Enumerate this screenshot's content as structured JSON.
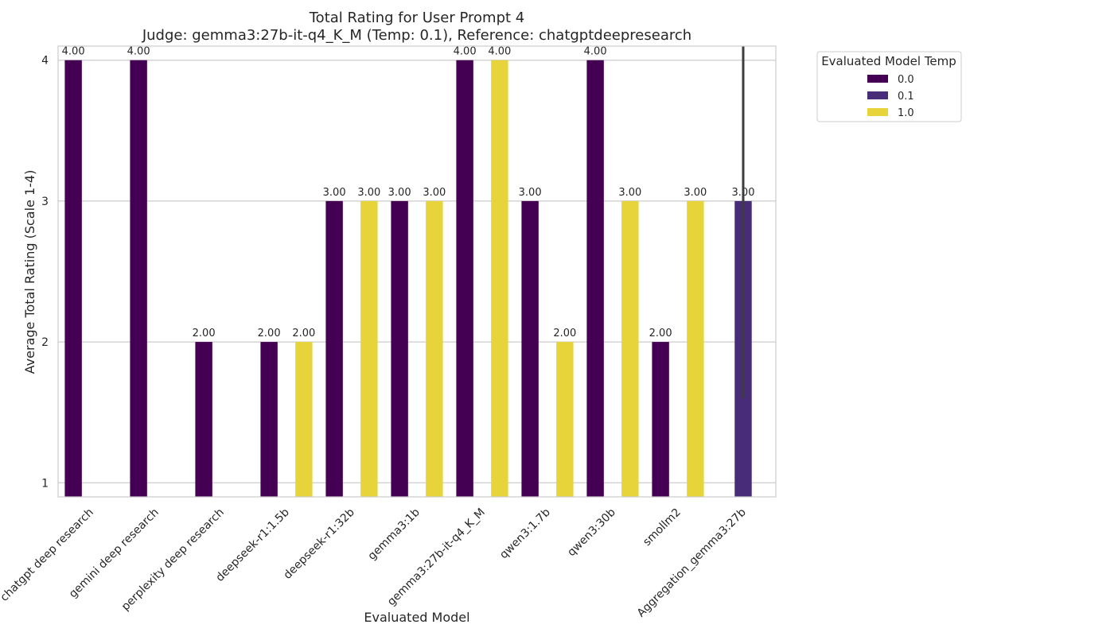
{
  "chart_data": {
    "type": "bar",
    "title": "Total Rating for User Prompt 4",
    "subtitle": "Judge: gemma3:27b-it-q4_K_M (Temp: 0.1), Reference: chatgptdeepresearch",
    "xlabel": "Evaluated Model",
    "ylabel": "Average Total Rating (Scale 1-4)",
    "ylim": [
      0.9,
      4.1
    ],
    "yticks": [
      "1",
      "2",
      "3",
      "4"
    ],
    "grid": "horizontal",
    "legend": {
      "title": "Evaluated Model Temp",
      "placement": "outside top-right"
    },
    "categories": [
      "chatgpt deep research",
      "gemini deep research",
      "perplexity deep research",
      "deepseek-r1:1.5b",
      "deepseek-r1:32b",
      "gemma3:1b",
      "gemma3:27b-it-q4_K_M",
      "qwen3:1.7b",
      "qwen3:30b",
      "smollm2",
      "Aggregation_gemma3:27b"
    ],
    "series": [
      {
        "name": "0.0",
        "color": "#440154",
        "values": [
          4,
          4,
          2,
          2,
          3,
          3,
          4,
          3,
          4,
          2,
          null
        ],
        "labels": [
          "4.00",
          "4.00",
          "2.00",
          "2.00",
          "3.00",
          "3.00",
          "4.00",
          "3.00",
          "4.00",
          "2.00",
          null
        ]
      },
      {
        "name": "0.1",
        "color": "#482c7a",
        "values": [
          null,
          null,
          null,
          null,
          null,
          null,
          null,
          null,
          null,
          null,
          3
        ],
        "labels": [
          null,
          null,
          null,
          null,
          null,
          null,
          null,
          null,
          null,
          null,
          "3.00"
        ],
        "error_bars": [
          null,
          null,
          null,
          null,
          null,
          null,
          null,
          null,
          null,
          null,
          [
            1.6,
            4.4
          ]
        ]
      },
      {
        "name": "1.0",
        "color": "#e6d43a",
        "values": [
          null,
          null,
          null,
          2,
          3,
          3,
          4,
          2,
          3,
          3,
          null
        ],
        "labels": [
          null,
          null,
          null,
          "2.00",
          "3.00",
          "3.00",
          "4.00",
          "2.00",
          "3.00",
          "3.00",
          null
        ]
      }
    ]
  }
}
